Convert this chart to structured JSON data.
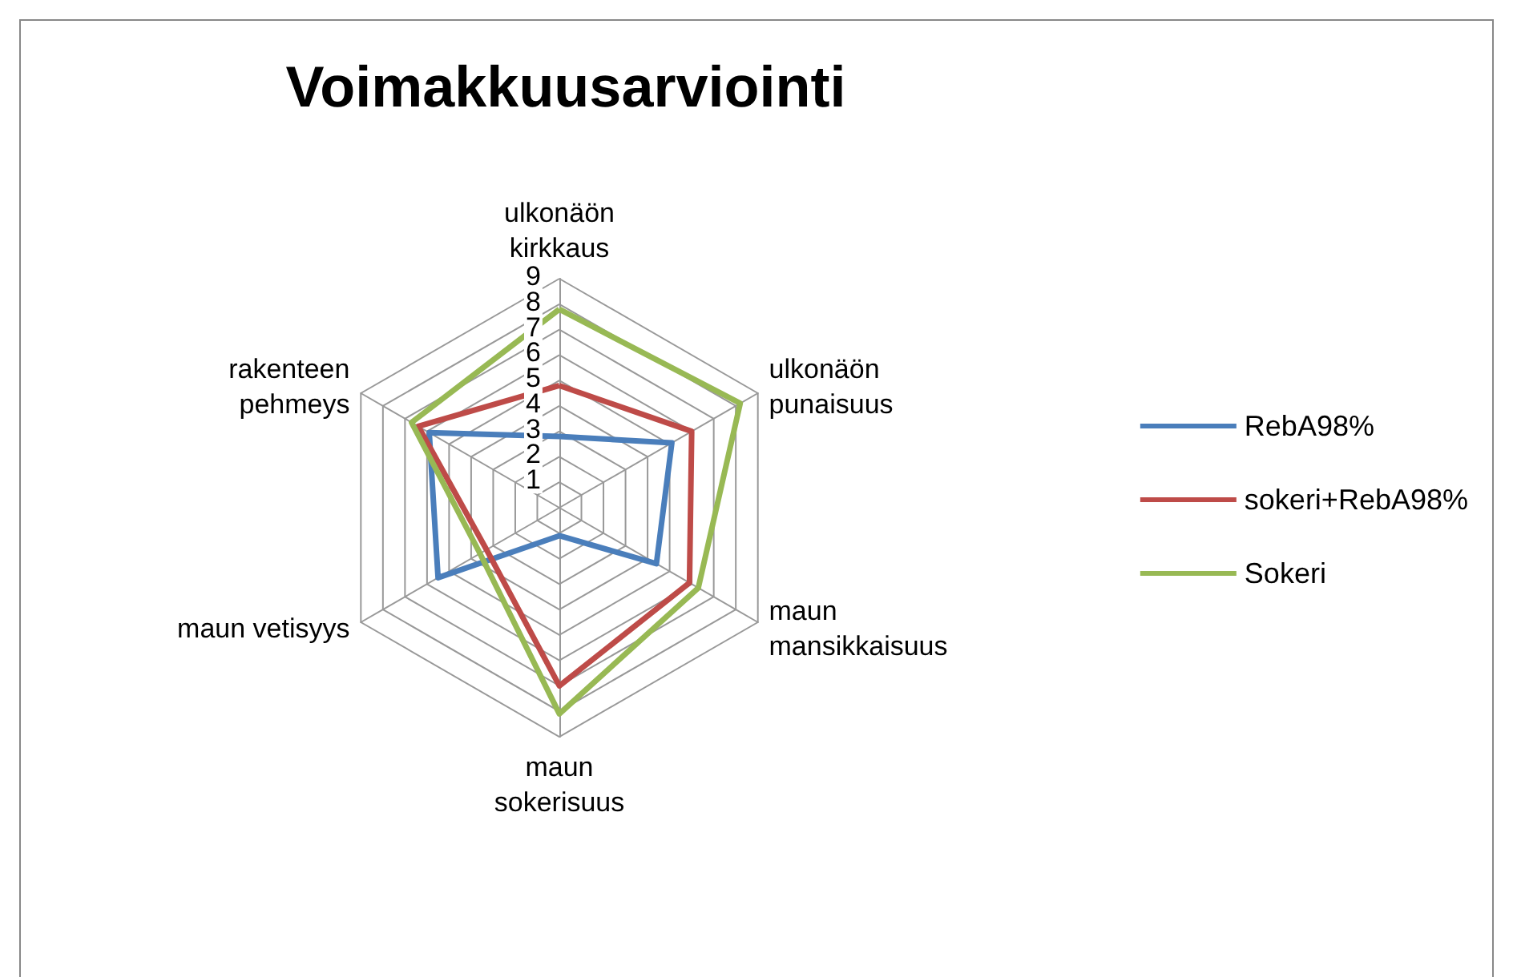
{
  "chart_data": {
    "type": "radar",
    "title": "Voimakkuusarviointi",
    "categories": [
      "ulkonäön\nkirkkaus",
      "ulkonäön\npunaisuus",
      "maun\nmansikkaisuus",
      "maun\nsokerisuus",
      "maun vetisyys",
      "rakenteen\npehmeys"
    ],
    "series": [
      {
        "name": "RebA98%",
        "color": "#4a7ebb",
        "values": [
          2.8,
          5.1,
          4.4,
          1.1,
          5.5,
          5.9
        ]
      },
      {
        "name": "sokeri+RebA98%",
        "color": "#be4b48",
        "values": [
          4.8,
          6.0,
          5.9,
          7.0,
          3.3,
          6.4
        ]
      },
      {
        "name": "Sokeri",
        "color": "#98b954",
        "values": [
          7.8,
          8.2,
          6.3,
          8.1,
          3.6,
          6.7
        ]
      }
    ],
    "ylim": [
      0,
      9
    ],
    "yticks": [
      1,
      2,
      3,
      4,
      5,
      6,
      7,
      8,
      9
    ],
    "grid": true,
    "legend": "right",
    "marker": "none",
    "line_style": "solid"
  }
}
